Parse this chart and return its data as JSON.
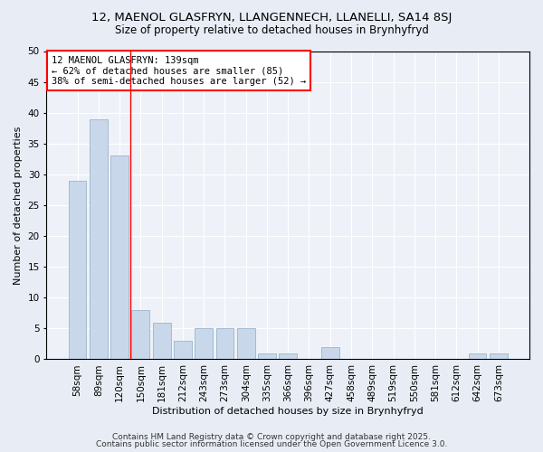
{
  "title1": "12, MAENOL GLASFRYN, LLANGENNECH, LLANELLI, SA14 8SJ",
  "title2": "Size of property relative to detached houses in Brynhyfryd",
  "xlabel": "Distribution of detached houses by size in Brynhyfryd",
  "ylabel": "Number of detached properties",
  "categories": [
    "58sqm",
    "89sqm",
    "120sqm",
    "150sqm",
    "181sqm",
    "212sqm",
    "243sqm",
    "273sqm",
    "304sqm",
    "335sqm",
    "366sqm",
    "396sqm",
    "427sqm",
    "458sqm",
    "489sqm",
    "519sqm",
    "550sqm",
    "581sqm",
    "612sqm",
    "642sqm",
    "673sqm"
  ],
  "values": [
    29,
    39,
    33,
    8,
    6,
    3,
    5,
    5,
    5,
    1,
    1,
    0,
    2,
    0,
    0,
    0,
    0,
    0,
    0,
    1,
    1
  ],
  "bar_color": "#c8d8ea",
  "bar_edge_color": "#9ab4cc",
  "bar_width": 0.85,
  "vline_x": 2.5,
  "vline_color": "red",
  "annotation_text": "12 MAENOL GLASFRYN: 139sqm\n← 62% of detached houses are smaller (85)\n38% of semi-detached houses are larger (52) →",
  "annotation_box_color": "white",
  "annotation_box_edge": "red",
  "ylim": [
    0,
    50
  ],
  "yticks": [
    0,
    5,
    10,
    15,
    20,
    25,
    30,
    35,
    40,
    45,
    50
  ],
  "bg_color": "#e8edf5",
  "plot_bg_color": "#eef2f8",
  "footer1": "Contains HM Land Registry data © Crown copyright and database right 2025.",
  "footer2": "Contains public sector information licensed under the Open Government Licence 3.0.",
  "title1_fontsize": 9.5,
  "title2_fontsize": 8.5,
  "xlabel_fontsize": 8,
  "ylabel_fontsize": 8,
  "tick_fontsize": 7.5,
  "annotation_fontsize": 7.5,
  "footer_fontsize": 6.5
}
